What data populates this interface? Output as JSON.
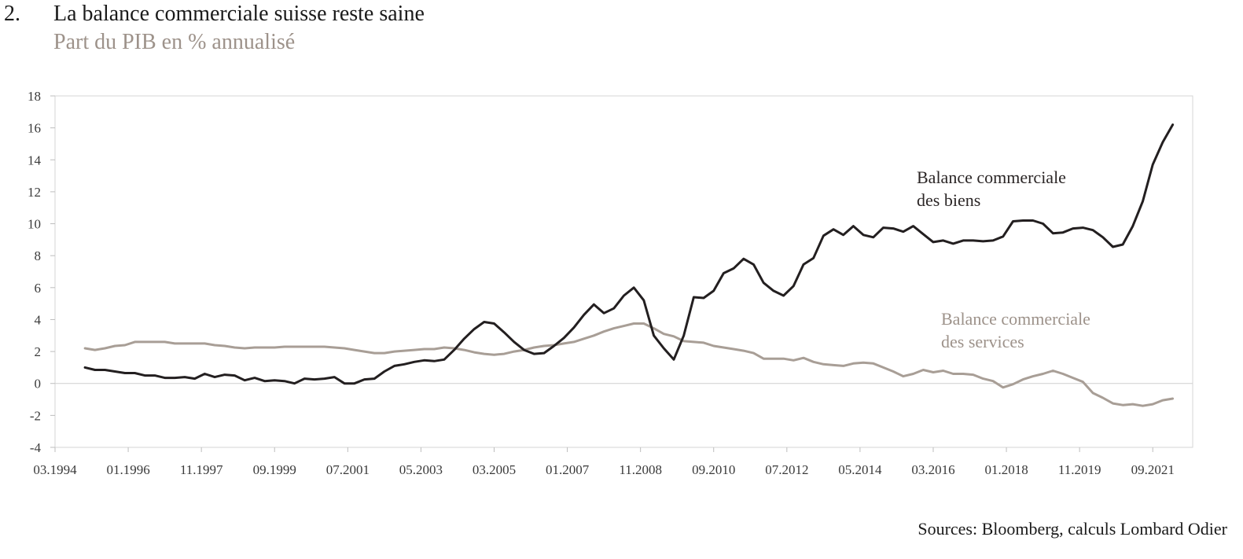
{
  "header": {
    "figure_number": "2.",
    "title": "La balance commerciale suisse reste saine",
    "subtitle": "Part du PIB en % annualisé"
  },
  "footer": {
    "source": "Sources: Bloomberg, calculs Lombard Odier"
  },
  "chart_data": {
    "type": "line",
    "title": "La balance commerciale suisse reste saine",
    "subtitle": "Part du PIB en % annualisé",
    "xlabel": "",
    "ylabel": "",
    "ylim": [
      -4,
      18
    ],
    "yticks": [
      -4,
      -2,
      0,
      2,
      4,
      6,
      8,
      10,
      12,
      14,
      16,
      18
    ],
    "xlim": [
      "1994-03",
      "2022-09"
    ],
    "xtick_labels": [
      "03.1994",
      "01.1996",
      "11.1997",
      "09.1999",
      "07.2001",
      "05.2003",
      "03.2005",
      "01.2007",
      "11.2008",
      "09.2010",
      "07.2012",
      "05.2014",
      "03.2016",
      "01.2018",
      "11.2019",
      "09.2021"
    ],
    "xtick_dates": [
      "1994-03",
      "1996-01",
      "1997-11",
      "1999-09",
      "2001-07",
      "2003-05",
      "2005-03",
      "2007-01",
      "2008-11",
      "2010-09",
      "2012-07",
      "2014-05",
      "2016-03",
      "2018-01",
      "2019-11",
      "2021-09"
    ],
    "grid": false,
    "legend": "none",
    "colors": {
      "biens": "#231f20",
      "services": "#a89e96"
    },
    "series": [
      {
        "name": "Balance commerciale des biens",
        "label_lines": [
          "Balance commerciale",
          "des biens"
        ],
        "color": "#231f20",
        "points": [
          [
            "1994-12",
            1.0
          ],
          [
            "1995-03",
            0.85
          ],
          [
            "1995-06",
            0.85
          ],
          [
            "1995-09",
            0.75
          ],
          [
            "1995-12",
            0.65
          ],
          [
            "1996-03",
            0.65
          ],
          [
            "1996-06",
            0.5
          ],
          [
            "1996-09",
            0.5
          ],
          [
            "1996-12",
            0.35
          ],
          [
            "1997-03",
            0.35
          ],
          [
            "1997-06",
            0.4
          ],
          [
            "1997-09",
            0.3
          ],
          [
            "1997-12",
            0.6
          ],
          [
            "1998-03",
            0.4
          ],
          [
            "1998-06",
            0.55
          ],
          [
            "1998-09",
            0.5
          ],
          [
            "1998-12",
            0.2
          ],
          [
            "1999-03",
            0.35
          ],
          [
            "1999-06",
            0.15
          ],
          [
            "1999-09",
            0.2
          ],
          [
            "1999-12",
            0.15
          ],
          [
            "2000-03",
            0.0
          ],
          [
            "2000-06",
            0.3
          ],
          [
            "2000-09",
            0.25
          ],
          [
            "2000-12",
            0.3
          ],
          [
            "2001-03",
            0.4
          ],
          [
            "2001-06",
            0.0
          ],
          [
            "2001-09",
            0.0
          ],
          [
            "2001-12",
            0.25
          ],
          [
            "2002-03",
            0.3
          ],
          [
            "2002-06",
            0.75
          ],
          [
            "2002-09",
            1.1
          ],
          [
            "2002-12",
            1.2
          ],
          [
            "2003-03",
            1.35
          ],
          [
            "2003-06",
            1.45
          ],
          [
            "2003-09",
            1.4
          ],
          [
            "2003-12",
            1.5
          ],
          [
            "2004-03",
            2.1
          ],
          [
            "2004-06",
            2.8
          ],
          [
            "2004-09",
            3.4
          ],
          [
            "2004-12",
            3.85
          ],
          [
            "2005-03",
            3.75
          ],
          [
            "2005-06",
            3.2
          ],
          [
            "2005-09",
            2.6
          ],
          [
            "2005-12",
            2.1
          ],
          [
            "2006-03",
            1.85
          ],
          [
            "2006-06",
            1.9
          ],
          [
            "2006-09",
            2.35
          ],
          [
            "2006-12",
            2.85
          ],
          [
            "2007-03",
            3.5
          ],
          [
            "2007-06",
            4.3
          ],
          [
            "2007-09",
            4.95
          ],
          [
            "2007-12",
            4.4
          ],
          [
            "2008-03",
            4.7
          ],
          [
            "2008-06",
            5.5
          ],
          [
            "2008-09",
            6.0
          ],
          [
            "2008-12",
            5.2
          ],
          [
            "2009-03",
            3.0
          ],
          [
            "2009-06",
            2.2
          ],
          [
            "2009-09",
            1.5
          ],
          [
            "2009-12",
            3.0
          ],
          [
            "2010-03",
            5.4
          ],
          [
            "2010-06",
            5.35
          ],
          [
            "2010-09",
            5.8
          ],
          [
            "2010-12",
            6.9
          ],
          [
            "2011-03",
            7.2
          ],
          [
            "2011-06",
            7.8
          ],
          [
            "2011-09",
            7.45
          ],
          [
            "2011-12",
            6.3
          ],
          [
            "2012-03",
            5.8
          ],
          [
            "2012-06",
            5.5
          ],
          [
            "2012-09",
            6.1
          ],
          [
            "2012-12",
            7.45
          ],
          [
            "2013-03",
            7.85
          ],
          [
            "2013-06",
            9.25
          ],
          [
            "2013-09",
            9.65
          ],
          [
            "2013-12",
            9.3
          ],
          [
            "2014-03",
            9.85
          ],
          [
            "2014-06",
            9.3
          ],
          [
            "2014-09",
            9.15
          ],
          [
            "2014-12",
            9.75
          ],
          [
            "2015-03",
            9.7
          ],
          [
            "2015-06",
            9.5
          ],
          [
            "2015-09",
            9.85
          ],
          [
            "2015-12",
            9.35
          ],
          [
            "2016-03",
            8.85
          ],
          [
            "2016-06",
            8.95
          ],
          [
            "2016-09",
            8.75
          ],
          [
            "2016-12",
            8.95
          ],
          [
            "2017-03",
            8.95
          ],
          [
            "2017-06",
            8.9
          ],
          [
            "2017-09",
            8.95
          ],
          [
            "2017-12",
            9.2
          ],
          [
            "2018-03",
            10.15
          ],
          [
            "2018-06",
            10.2
          ],
          [
            "2018-09",
            10.2
          ],
          [
            "2018-12",
            10.0
          ],
          [
            "2019-03",
            9.4
          ],
          [
            "2019-06",
            9.45
          ],
          [
            "2019-09",
            9.7
          ],
          [
            "2019-12",
            9.75
          ],
          [
            "2020-03",
            9.6
          ],
          [
            "2020-06",
            9.15
          ],
          [
            "2020-09",
            8.55
          ],
          [
            "2020-12",
            8.7
          ],
          [
            "2021-03",
            9.85
          ],
          [
            "2021-06",
            11.4
          ],
          [
            "2021-09",
            13.7
          ],
          [
            "2021-12",
            15.1
          ],
          [
            "2022-03",
            16.2
          ]
        ]
      },
      {
        "name": "Balance commerciale des services",
        "label_lines": [
          "Balance commerciale",
          "des services"
        ],
        "color": "#a89e96",
        "points": [
          [
            "1994-12",
            2.2
          ],
          [
            "1995-03",
            2.1
          ],
          [
            "1995-06",
            2.2
          ],
          [
            "1995-09",
            2.35
          ],
          [
            "1995-12",
            2.4
          ],
          [
            "1996-03",
            2.6
          ],
          [
            "1996-06",
            2.6
          ],
          [
            "1996-09",
            2.6
          ],
          [
            "1996-12",
            2.6
          ],
          [
            "1997-03",
            2.5
          ],
          [
            "1997-06",
            2.5
          ],
          [
            "1997-09",
            2.5
          ],
          [
            "1997-12",
            2.5
          ],
          [
            "1998-03",
            2.4
          ],
          [
            "1998-06",
            2.35
          ],
          [
            "1998-09",
            2.25
          ],
          [
            "1998-12",
            2.2
          ],
          [
            "1999-03",
            2.25
          ],
          [
            "1999-06",
            2.25
          ],
          [
            "1999-09",
            2.25
          ],
          [
            "1999-12",
            2.3
          ],
          [
            "2000-03",
            2.3
          ],
          [
            "2000-06",
            2.3
          ],
          [
            "2000-09",
            2.3
          ],
          [
            "2000-12",
            2.3
          ],
          [
            "2001-03",
            2.25
          ],
          [
            "2001-06",
            2.2
          ],
          [
            "2001-09",
            2.1
          ],
          [
            "2001-12",
            2.0
          ],
          [
            "2002-03",
            1.9
          ],
          [
            "2002-06",
            1.9
          ],
          [
            "2002-09",
            2.0
          ],
          [
            "2002-12",
            2.05
          ],
          [
            "2003-03",
            2.1
          ],
          [
            "2003-06",
            2.15
          ],
          [
            "2003-09",
            2.15
          ],
          [
            "2003-12",
            2.25
          ],
          [
            "2004-03",
            2.2
          ],
          [
            "2004-06",
            2.1
          ],
          [
            "2004-09",
            1.95
          ],
          [
            "2004-12",
            1.85
          ],
          [
            "2005-03",
            1.8
          ],
          [
            "2005-06",
            1.85
          ],
          [
            "2005-09",
            2.0
          ],
          [
            "2005-12",
            2.1
          ],
          [
            "2006-03",
            2.25
          ],
          [
            "2006-06",
            2.35
          ],
          [
            "2006-09",
            2.4
          ],
          [
            "2006-12",
            2.5
          ],
          [
            "2007-03",
            2.6
          ],
          [
            "2007-06",
            2.8
          ],
          [
            "2007-09",
            3.0
          ],
          [
            "2007-12",
            3.25
          ],
          [
            "2008-03",
            3.45
          ],
          [
            "2008-06",
            3.6
          ],
          [
            "2008-09",
            3.75
          ],
          [
            "2008-12",
            3.75
          ],
          [
            "2009-03",
            3.45
          ],
          [
            "2009-06",
            3.1
          ],
          [
            "2009-09",
            2.95
          ],
          [
            "2009-12",
            2.65
          ],
          [
            "2010-03",
            2.6
          ],
          [
            "2010-06",
            2.55
          ],
          [
            "2010-09",
            2.35
          ],
          [
            "2010-12",
            2.25
          ],
          [
            "2011-03",
            2.15
          ],
          [
            "2011-06",
            2.05
          ],
          [
            "2011-09",
            1.9
          ],
          [
            "2011-12",
            1.55
          ],
          [
            "2012-03",
            1.55
          ],
          [
            "2012-06",
            1.55
          ],
          [
            "2012-09",
            1.45
          ],
          [
            "2012-12",
            1.6
          ],
          [
            "2013-03",
            1.35
          ],
          [
            "2013-06",
            1.2
          ],
          [
            "2013-09",
            1.15
          ],
          [
            "2013-12",
            1.1
          ],
          [
            "2014-03",
            1.25
          ],
          [
            "2014-06",
            1.3
          ],
          [
            "2014-09",
            1.25
          ],
          [
            "2014-12",
            1.0
          ],
          [
            "2015-03",
            0.75
          ],
          [
            "2015-06",
            0.45
          ],
          [
            "2015-09",
            0.6
          ],
          [
            "2015-12",
            0.85
          ],
          [
            "2016-03",
            0.7
          ],
          [
            "2016-06",
            0.8
          ],
          [
            "2016-09",
            0.6
          ],
          [
            "2016-12",
            0.6
          ],
          [
            "2017-03",
            0.55
          ],
          [
            "2017-06",
            0.3
          ],
          [
            "2017-09",
            0.15
          ],
          [
            "2017-12",
            -0.25
          ],
          [
            "2018-03",
            -0.05
          ],
          [
            "2018-06",
            0.25
          ],
          [
            "2018-09",
            0.45
          ],
          [
            "2018-12",
            0.6
          ],
          [
            "2019-03",
            0.8
          ],
          [
            "2019-06",
            0.6
          ],
          [
            "2019-09",
            0.35
          ],
          [
            "2019-12",
            0.1
          ],
          [
            "2020-03",
            -0.6
          ],
          [
            "2020-06",
            -0.9
          ],
          [
            "2020-09",
            -1.25
          ],
          [
            "2020-12",
            -1.35
          ],
          [
            "2021-03",
            -1.3
          ],
          [
            "2021-06",
            -1.4
          ],
          [
            "2021-09",
            -1.3
          ],
          [
            "2021-12",
            -1.05
          ],
          [
            "2022-03",
            -0.95
          ]
        ]
      }
    ]
  }
}
